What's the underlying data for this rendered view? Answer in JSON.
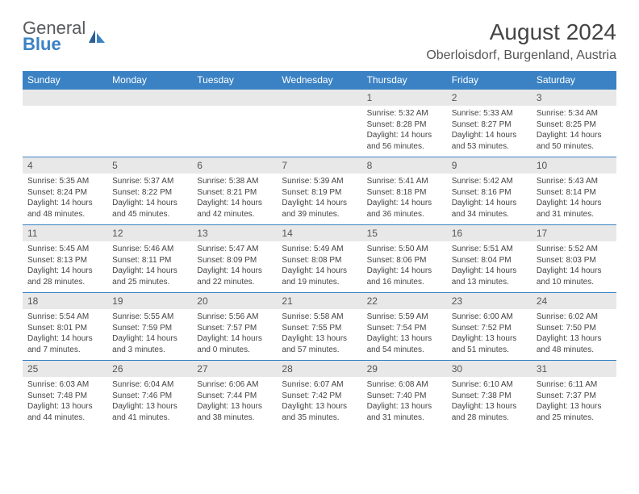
{
  "brand": {
    "name1": "General",
    "name2": "Blue"
  },
  "title": "August 2024",
  "location": "Oberloisdorf, Burgenland, Austria",
  "colors": {
    "accent": "#3b82c4",
    "header_bg": "#3b82c4",
    "header_text": "#ffffff",
    "daynum_bg": "#e8e8e8",
    "body_text": "#444444",
    "page_bg": "#ffffff"
  },
  "weekdays": [
    "Sunday",
    "Monday",
    "Tuesday",
    "Wednesday",
    "Thursday",
    "Friday",
    "Saturday"
  ],
  "weeks": [
    [
      null,
      null,
      null,
      null,
      {
        "n": "1",
        "sunrise": "5:32 AM",
        "sunset": "8:28 PM",
        "daylight": "14 hours and 56 minutes."
      },
      {
        "n": "2",
        "sunrise": "5:33 AM",
        "sunset": "8:27 PM",
        "daylight": "14 hours and 53 minutes."
      },
      {
        "n": "3",
        "sunrise": "5:34 AM",
        "sunset": "8:25 PM",
        "daylight": "14 hours and 50 minutes."
      }
    ],
    [
      {
        "n": "4",
        "sunrise": "5:35 AM",
        "sunset": "8:24 PM",
        "daylight": "14 hours and 48 minutes."
      },
      {
        "n": "5",
        "sunrise": "5:37 AM",
        "sunset": "8:22 PM",
        "daylight": "14 hours and 45 minutes."
      },
      {
        "n": "6",
        "sunrise": "5:38 AM",
        "sunset": "8:21 PM",
        "daylight": "14 hours and 42 minutes."
      },
      {
        "n": "7",
        "sunrise": "5:39 AM",
        "sunset": "8:19 PM",
        "daylight": "14 hours and 39 minutes."
      },
      {
        "n": "8",
        "sunrise": "5:41 AM",
        "sunset": "8:18 PM",
        "daylight": "14 hours and 36 minutes."
      },
      {
        "n": "9",
        "sunrise": "5:42 AM",
        "sunset": "8:16 PM",
        "daylight": "14 hours and 34 minutes."
      },
      {
        "n": "10",
        "sunrise": "5:43 AM",
        "sunset": "8:14 PM",
        "daylight": "14 hours and 31 minutes."
      }
    ],
    [
      {
        "n": "11",
        "sunrise": "5:45 AM",
        "sunset": "8:13 PM",
        "daylight": "14 hours and 28 minutes."
      },
      {
        "n": "12",
        "sunrise": "5:46 AM",
        "sunset": "8:11 PM",
        "daylight": "14 hours and 25 minutes."
      },
      {
        "n": "13",
        "sunrise": "5:47 AM",
        "sunset": "8:09 PM",
        "daylight": "14 hours and 22 minutes."
      },
      {
        "n": "14",
        "sunrise": "5:49 AM",
        "sunset": "8:08 PM",
        "daylight": "14 hours and 19 minutes."
      },
      {
        "n": "15",
        "sunrise": "5:50 AM",
        "sunset": "8:06 PM",
        "daylight": "14 hours and 16 minutes."
      },
      {
        "n": "16",
        "sunrise": "5:51 AM",
        "sunset": "8:04 PM",
        "daylight": "14 hours and 13 minutes."
      },
      {
        "n": "17",
        "sunrise": "5:52 AM",
        "sunset": "8:03 PM",
        "daylight": "14 hours and 10 minutes."
      }
    ],
    [
      {
        "n": "18",
        "sunrise": "5:54 AM",
        "sunset": "8:01 PM",
        "daylight": "14 hours and 7 minutes."
      },
      {
        "n": "19",
        "sunrise": "5:55 AM",
        "sunset": "7:59 PM",
        "daylight": "14 hours and 3 minutes."
      },
      {
        "n": "20",
        "sunrise": "5:56 AM",
        "sunset": "7:57 PM",
        "daylight": "14 hours and 0 minutes."
      },
      {
        "n": "21",
        "sunrise": "5:58 AM",
        "sunset": "7:55 PM",
        "daylight": "13 hours and 57 minutes."
      },
      {
        "n": "22",
        "sunrise": "5:59 AM",
        "sunset": "7:54 PM",
        "daylight": "13 hours and 54 minutes."
      },
      {
        "n": "23",
        "sunrise": "6:00 AM",
        "sunset": "7:52 PM",
        "daylight": "13 hours and 51 minutes."
      },
      {
        "n": "24",
        "sunrise": "6:02 AM",
        "sunset": "7:50 PM",
        "daylight": "13 hours and 48 minutes."
      }
    ],
    [
      {
        "n": "25",
        "sunrise": "6:03 AM",
        "sunset": "7:48 PM",
        "daylight": "13 hours and 44 minutes."
      },
      {
        "n": "26",
        "sunrise": "6:04 AM",
        "sunset": "7:46 PM",
        "daylight": "13 hours and 41 minutes."
      },
      {
        "n": "27",
        "sunrise": "6:06 AM",
        "sunset": "7:44 PM",
        "daylight": "13 hours and 38 minutes."
      },
      {
        "n": "28",
        "sunrise": "6:07 AM",
        "sunset": "7:42 PM",
        "daylight": "13 hours and 35 minutes."
      },
      {
        "n": "29",
        "sunrise": "6:08 AM",
        "sunset": "7:40 PM",
        "daylight": "13 hours and 31 minutes."
      },
      {
        "n": "30",
        "sunrise": "6:10 AM",
        "sunset": "7:38 PM",
        "daylight": "13 hours and 28 minutes."
      },
      {
        "n": "31",
        "sunrise": "6:11 AM",
        "sunset": "7:37 PM",
        "daylight": "13 hours and 25 minutes."
      }
    ]
  ],
  "labels": {
    "sunrise": "Sunrise:",
    "sunset": "Sunset:",
    "daylight": "Daylight:"
  }
}
